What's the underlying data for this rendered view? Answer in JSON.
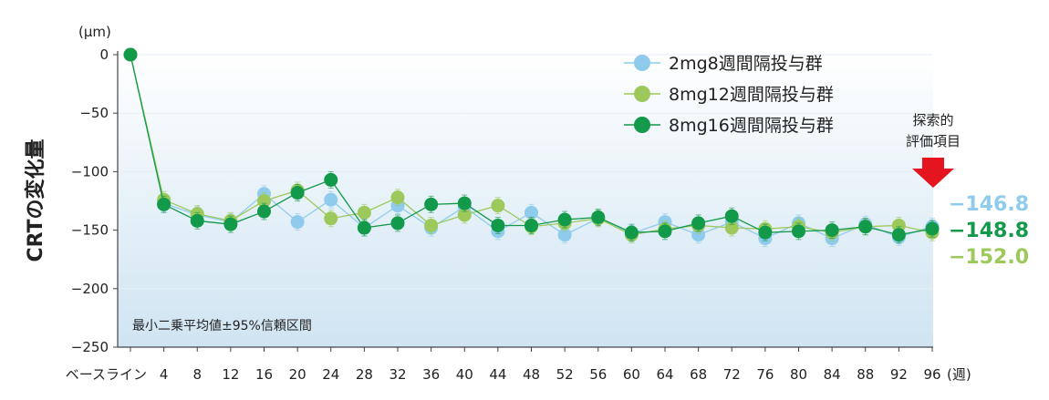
{
  "chart_data": {
    "type": "line",
    "ylabel": "CRTの変化量",
    "yunit": "(μm)",
    "xunit": "(週)",
    "note": "最小二乗平均値±95%信頼区間",
    "primary_endpoint": [
      "探索的",
      "評価項目"
    ],
    "ylim": [
      -250,
      0
    ],
    "yticks": [
      0,
      -50,
      -100,
      -150,
      -200,
      -250
    ],
    "ytick_labels": [
      "0",
      "−50",
      "−100",
      "−150",
      "−200",
      "−250"
    ],
    "categories": [
      "ベースライン",
      "4",
      "8",
      "12",
      "16",
      "20",
      "24",
      "28",
      "32",
      "36",
      "40",
      "44",
      "48",
      "52",
      "56",
      "60",
      "64",
      "68",
      "72",
      "76",
      "80",
      "84",
      "88",
      "92",
      "96"
    ],
    "series": [
      {
        "name": "2mg8週間隔投与群",
        "color": "#8ecbec",
        "values": [
          0,
          -127,
          -137,
          -143,
          -119,
          -143,
          -124,
          -148,
          -129,
          -148,
          -130,
          -151,
          -135,
          -154,
          -140,
          -153,
          -143,
          -154,
          -143,
          -157,
          -144,
          -157,
          -145,
          -156,
          -146.8
        ]
      },
      {
        "name": "8mg12週間隔投与群",
        "color": "#9dc95c",
        "values": [
          0,
          -124,
          -136,
          -142,
          -125,
          -116,
          -140,
          -135,
          -122,
          -146,
          -137,
          -129,
          -147,
          -144,
          -140,
          -154,
          -149,
          -146,
          -148,
          -149,
          -147,
          -152,
          -147,
          -146,
          -152.0
        ]
      },
      {
        "name": "8mg16週間隔投与群",
        "color": "#12994a",
        "values": [
          0,
          -128,
          -142,
          -145,
          -134,
          -118,
          -107,
          -148,
          -144,
          -128,
          -127,
          -146,
          -146,
          -141,
          -139,
          -152,
          -151,
          -144,
          -138,
          -152,
          -151,
          -150,
          -147,
          -154,
          -148.8
        ]
      }
    ],
    "final_values": [
      {
        "text": "−146.8",
        "color": "#8ecbec"
      },
      {
        "text": "−148.8",
        "color": "#12994a"
      },
      {
        "text": "−152.0",
        "color": "#9dc95c"
      }
    ]
  }
}
